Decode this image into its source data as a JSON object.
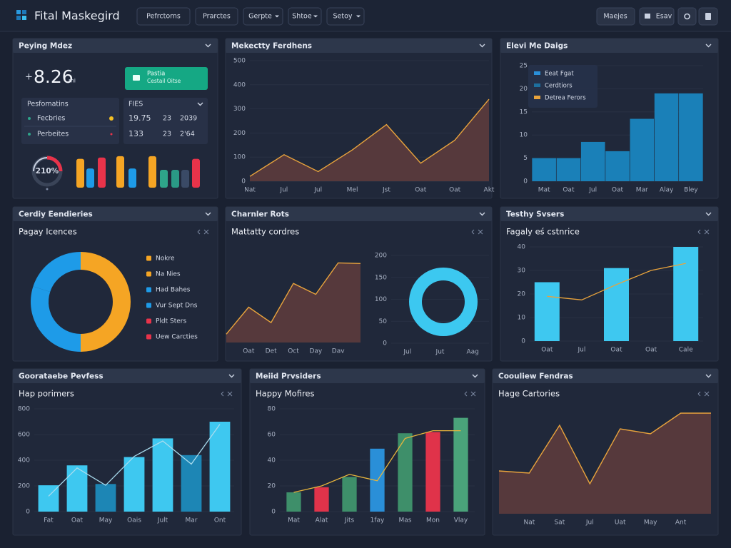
{
  "header": {
    "logo": "Fital Maskegird",
    "nav": [
      "Pefrctorns",
      "Prarctes",
      "Gerpte",
      "Shtoe",
      "Setoy"
    ],
    "actions": [
      "Maejes",
      "Esav"
    ]
  },
  "kpi": {
    "title": "Peying Mdez",
    "prefix": "+",
    "value": "8.26",
    "unit": "mi",
    "badge": {
      "title": "Pastia",
      "subtitle": "Cestail Oitse"
    },
    "section": "Pesfomatins",
    "rows": [
      "Fecbries",
      "Perbeites"
    ],
    "table": {
      "title": "FIES",
      "rows": [
        [
          "19.75",
          "23",
          "2039"
        ],
        [
          "133",
          "23",
          "2'64"
        ]
      ]
    },
    "gauge": "210%",
    "bars": {
      "values": [
        42,
        28,
        44,
        46,
        28,
        46,
        26,
        26,
        26,
        42
      ],
      "colors": [
        "#f5a524",
        "#1e9be8",
        "#e8334a",
        "#f5a524",
        "#1e9be8",
        "#f5a524",
        "#2ea58a",
        "#2a9a86",
        "#3a4a66",
        "#e8334a"
      ]
    }
  },
  "chart_data": [
    {
      "type": "area",
      "title": "Mekectty Ferdhens",
      "categories": [
        "Nat",
        "Jul",
        "Jul",
        "Mel",
        "Jst",
        "Oat",
        "Oat",
        "Akt"
      ],
      "values": [
        20,
        110,
        40,
        130,
        235,
        75,
        170,
        340
      ],
      "ylim": [
        0,
        500
      ],
      "yticks": [
        0,
        100,
        200,
        300,
        400,
        500
      ],
      "color": "#e8a33c",
      "fill": "#5a3a3c"
    },
    {
      "type": "bar",
      "title": "Elevi Me Daigs",
      "categories": [
        "Mat",
        "Oat",
        "Jul",
        "Oat",
        "Mar",
        "Alay",
        "Bley"
      ],
      "values": [
        5,
        5,
        8.5,
        6.5,
        13.5,
        19,
        19
      ],
      "color": "#1a80b8",
      "ylim": [
        0,
        25
      ],
      "yticks": [
        0,
        5,
        10,
        15,
        20,
        25
      ],
      "legend": [
        {
          "name": "Eeat Fgat",
          "color": "#2a8fd8"
        },
        {
          "name": "Cerdtiors",
          "color": "#1d6f9e"
        },
        {
          "name": "Detrea Ferors",
          "color": "#e8a33c"
        }
      ]
    },
    {
      "type": "donut",
      "title": "Cerdiy Eendieries",
      "subtitle": "Pagay Icences",
      "categories": [
        "Nokre",
        "Na Nies",
        "Had Bahes",
        "Vur Sept Dns",
        "Pldt Sters",
        "Uew Carcties"
      ],
      "values": [
        25,
        25,
        30,
        20,
        0,
        0
      ],
      "colors": [
        "#f5a524",
        "#f5a524",
        "#1e9be8",
        "#1e9be8",
        "#e8334a",
        "#e8334a"
      ]
    },
    {
      "type": "area",
      "title": "Charnler Rots",
      "subtitle": "Mattatty cordres",
      "categories": [
        null,
        "Oat",
        "Det",
        "Oct",
        "Day",
        "Dav",
        null
      ],
      "values": [
        13,
        55,
        31,
        92,
        75,
        124,
        123
      ],
      "ylim": [
        0,
        150
      ],
      "color": "#e8a33c",
      "fill": "#5a3a3c"
    },
    {
      "type": "donut",
      "values": [
        100
      ],
      "colors": [
        "#3cc8f0"
      ],
      "x_labels": [
        "Jul",
        "Jut",
        "Aag"
      ],
      "ylim": [
        0,
        200
      ],
      "yticks": [
        0,
        50,
        100,
        150,
        200
      ]
    },
    {
      "type": "bar",
      "title": "Testhy Svsers",
      "subtitle": "Fagaly eś cstnrice",
      "categories": [
        "Oat",
        "Jul",
        "Oat",
        "Oat",
        "Cale"
      ],
      "series": [
        {
          "type": "bar",
          "color": "#3ec8f0",
          "values": [
            25,
            null,
            31,
            null,
            40
          ]
        },
        {
          "type": "line",
          "color": "#e8a33c",
          "values": [
            19,
            17.5,
            24,
            30,
            33
          ]
        }
      ],
      "ylim": [
        0,
        40
      ],
      "yticks": [
        0,
        10,
        20,
        30,
        40
      ]
    },
    {
      "type": "bar",
      "title": "Goorataebe Pevfess",
      "subtitle": "Hap porimers",
      "categories": [
        "Fat",
        "Oat",
        "May",
        "Oais",
        "Jult",
        "Mar",
        "Ont"
      ],
      "series": [
        {
          "type": "bar",
          "colors": [
            "#3ec8f0",
            "#3ec8f0",
            "#1d86b5",
            "#3ec8f0",
            "#3ec8f0",
            "#1d86b5",
            "#3ec8f0"
          ],
          "values": [
            205,
            360,
            215,
            425,
            570,
            440,
            700
          ]
        },
        {
          "type": "line",
          "color": "#a9dcee",
          "values": [
            120,
            340,
            205,
            430,
            550,
            370,
            680
          ]
        }
      ],
      "ylim": [
        0,
        800
      ],
      "yticks": [
        0,
        200,
        400,
        600,
        800
      ]
    },
    {
      "type": "bar",
      "title": "Meiid Prvsiders",
      "subtitle": "Happy Mofires",
      "categories": [
        "Mat",
        "Alat",
        "Jits",
        "1fay",
        "Mas",
        "Mon",
        "Vlay"
      ],
      "series": [
        {
          "type": "bar",
          "colors": [
            "#3e8f6a",
            "#e0334a",
            "#3e8f6a",
            "#2a8fd8",
            "#3e8f6a",
            "#e0334a",
            "#4aa37a"
          ],
          "values": [
            15,
            19,
            27,
            49,
            61,
            62,
            73
          ]
        },
        {
          "type": "line",
          "color": "#e8b53c",
          "values": [
            15,
            20,
            29,
            24,
            57,
            63,
            63
          ]
        }
      ],
      "ylim": [
        0,
        80
      ],
      "yticks": [
        0,
        20,
        40,
        60,
        80
      ]
    },
    {
      "type": "area",
      "title": "Coouliew Fendras",
      "subtitle": "Hage Cartories",
      "categories": [
        null,
        "Nat",
        "Sat",
        "Jul",
        "Uat",
        "May",
        "Ant",
        null
      ],
      "values": [
        60,
        57,
        124,
        42,
        119,
        112,
        141,
        141
      ],
      "ylim": [
        0,
        150
      ],
      "color": "#e8a33c",
      "fill": "#5a3a3c"
    }
  ]
}
